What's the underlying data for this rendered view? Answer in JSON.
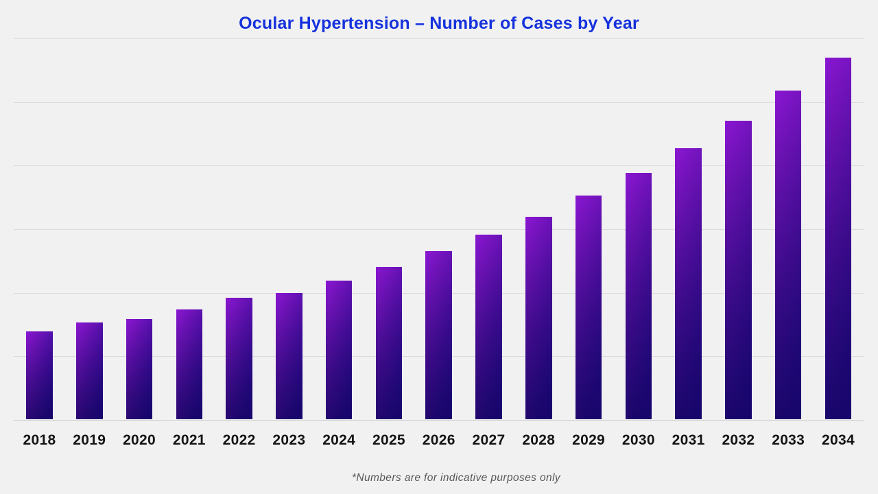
{
  "page": {
    "background_color": "#f1f1f2",
    "footnote": "*Numbers are for indicative purposes only"
  },
  "chart_data": {
    "type": "bar",
    "title": "Ocular Hypertension – Number of Cases by Year",
    "title_color": "#1532dc",
    "categories": [
      "2018",
      "2019",
      "2020",
      "2021",
      "2022",
      "2023",
      "2024",
      "2025",
      "2026",
      "2027",
      "2028",
      "2029",
      "2030",
      "2031",
      "2032",
      "2033",
      "2034"
    ],
    "values": [
      1.38,
      1.52,
      1.58,
      1.73,
      1.91,
      1.99,
      2.18,
      2.4,
      2.64,
      2.9,
      3.18,
      3.52,
      3.87,
      4.26,
      4.69,
      5.17,
      5.69
    ],
    "values_note": "y-axis is unlabeled; values estimated in gridline units (1 unit = one gridline interval), baseline = 0",
    "xlabel": "",
    "ylabel": "",
    "ylim": [
      0,
      6
    ],
    "gridline_count": 7,
    "grid_on": true,
    "grid_color": "#dbdbdd",
    "legend": "none",
    "y_tick_labels": "none",
    "bar_color_gradient": [
      "#8b16d2",
      "#4c0ea6",
      "#24099a",
      "#150983"
    ],
    "tick_label_color": "#141414",
    "footnote_color": "#57575a"
  }
}
